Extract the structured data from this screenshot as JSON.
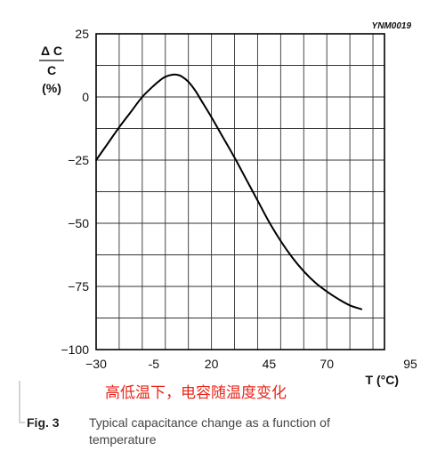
{
  "chart_data": {
    "type": "line",
    "reference_code": "YNM0019",
    "ylabel": {
      "numerator": "Δ C",
      "denominator": "C",
      "unit": "(%)"
    },
    "xlabel": "T (°C)",
    "x_ticks": [
      "−30",
      "-5",
      "20",
      "45",
      "70",
      "95"
    ],
    "y_ticks": [
      "25",
      "0",
      "−25",
      "−50",
      "−75",
      "−100"
    ],
    "xlim": [
      -30,
      95
    ],
    "ylim": [
      -100,
      25
    ],
    "grid": true,
    "series": [
      {
        "color": "#000000",
        "x": [
          -30,
          -25,
          -20,
          -15,
          -10,
          -5,
          -2,
          0,
          3,
          5,
          7,
          10,
          13,
          15,
          20,
          25,
          30,
          35,
          40,
          45,
          50,
          55,
          60,
          65,
          70,
          75,
          80,
          85
        ],
        "y": [
          -25,
          -18.5,
          -12,
          -6,
          0,
          4.5,
          6.8,
          8,
          8.8,
          8.8,
          8.2,
          6,
          2.5,
          -0.5,
          -8,
          -16,
          -24,
          -32.5,
          -41,
          -49.5,
          -57,
          -63.5,
          -69,
          -73.5,
          -77,
          -80,
          -82.5,
          -84
        ]
      }
    ]
  },
  "annotation": "高低温下，电容随温度变化",
  "caption": {
    "fig_label": "Fig. 3",
    "line1": "Typical capacitance change as a function of",
    "line2": "temperature"
  }
}
